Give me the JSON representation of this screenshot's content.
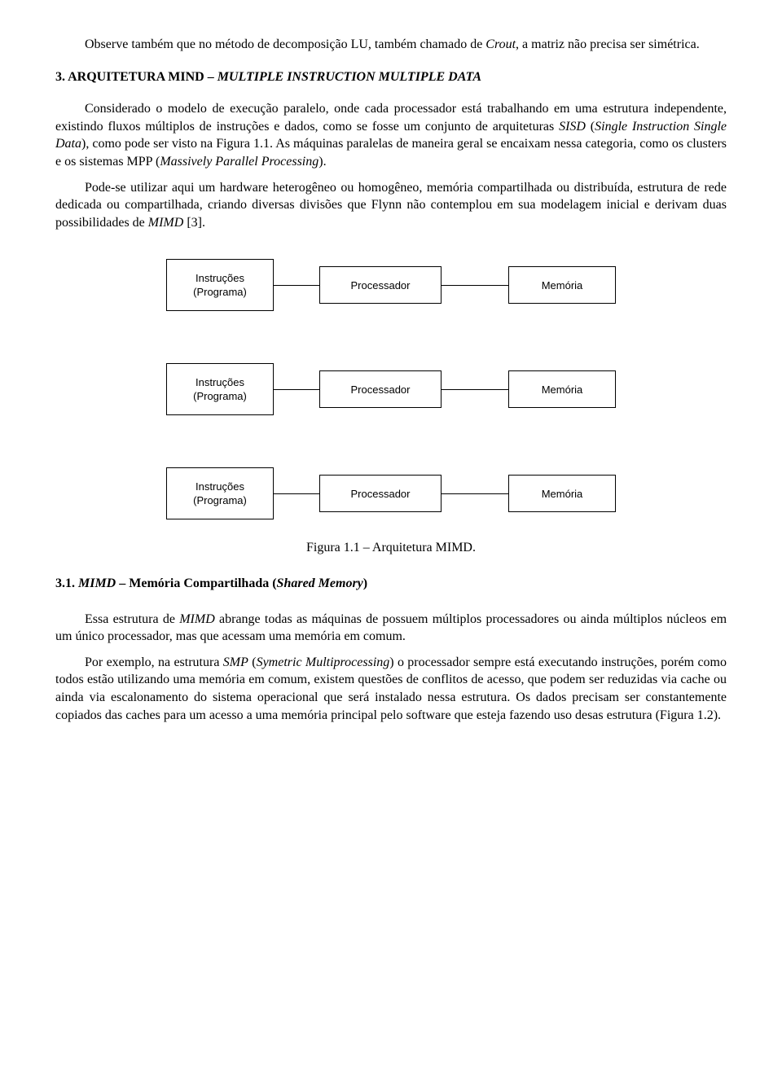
{
  "p0": "Observe também que no método de decomposição LU, também chamado de ",
  "p0_em": "Crout",
  "p0b": ", a matriz não precisa ser simétrica.",
  "section_number": "3. ",
  "section_title_a": "ARQUITETURA MIND – ",
  "section_title_em": "MULTIPLE INSTRUCTION MULTIPLE DATA",
  "p1a": "Considerado o modelo de execução paralelo, onde cada processador está trabalhando em uma estrutura independente, existindo fluxos múltiplos de instruções e dados, como se fosse um conjunto de arquiteturas ",
  "p1_em1": "SISD",
  "p1b": " (",
  "p1_em2": "Single Instruction Single Data",
  "p1c": "), como pode ser visto na Figura 1.1. As máquinas paralelas de maneira geral se encaixam nessa categoria, como os clusters e os sistemas MPP (",
  "p1_em3": "Massively Parallel Processing",
  "p1d": ").",
  "p2a": "Pode-se utilizar aqui um hardware heterogêneo ou homogêneo, memória compartilhada ou distribuída, estrutura de rede dedicada ou compartilhada, criando diversas divisões que Flynn não contemplou em sua modelagem inicial e derivam duas possibilidades de ",
  "p2_em": "MIMD",
  "p2b": " [3].",
  "diagram": {
    "rows": [
      {
        "instr_l1": "Instruções",
        "instr_l2": "(Programa)",
        "proc": "Processador",
        "mem": "Memória"
      },
      {
        "instr_l1": "Instruções",
        "instr_l2": "(Programa)",
        "proc": "Processador",
        "mem": "Memória"
      },
      {
        "instr_l1": "Instruções",
        "instr_l2": "(Programa)",
        "proc": "Processador",
        "mem": "Memória"
      }
    ],
    "box_border_color": "#000000",
    "box_font_family": "Arial",
    "box_font_size_pt": 10,
    "connector_color": "#000000"
  },
  "caption": "Figura 1.1 – Arquitetura MIMD.",
  "sub_number": "3.1. ",
  "sub_em": "MIMD",
  "sub_mid": " – Memória Compartilhada (",
  "sub_em2": "Shared Memory",
  "sub_end": ")",
  "p3a": "Essa estrutura de ",
  "p3_em": "MIMD",
  "p3b": " abrange todas as máquinas de possuem múltiplos processadores ou ainda múltiplos núcleos em um único processador, mas que acessam uma memória em comum.",
  "p4a": "Por exemplo, na estrutura ",
  "p4_em1": "SMP",
  "p4b": " (",
  "p4_em2": "Symetric Multiprocessing",
  "p4c": ") o processador sempre está executando instruções, porém como todos estão utilizando uma memória em comum, existem questões de conflitos de acesso, que podem ser reduzidas via cache ou ainda via escalonamento do sistema operacional que será instalado nessa estrutura. Os dados precisam ser constantemente copiados das caches para um acesso a uma memória principal pelo software que esteja fazendo uso desas estrutura (Figura 1.2)."
}
